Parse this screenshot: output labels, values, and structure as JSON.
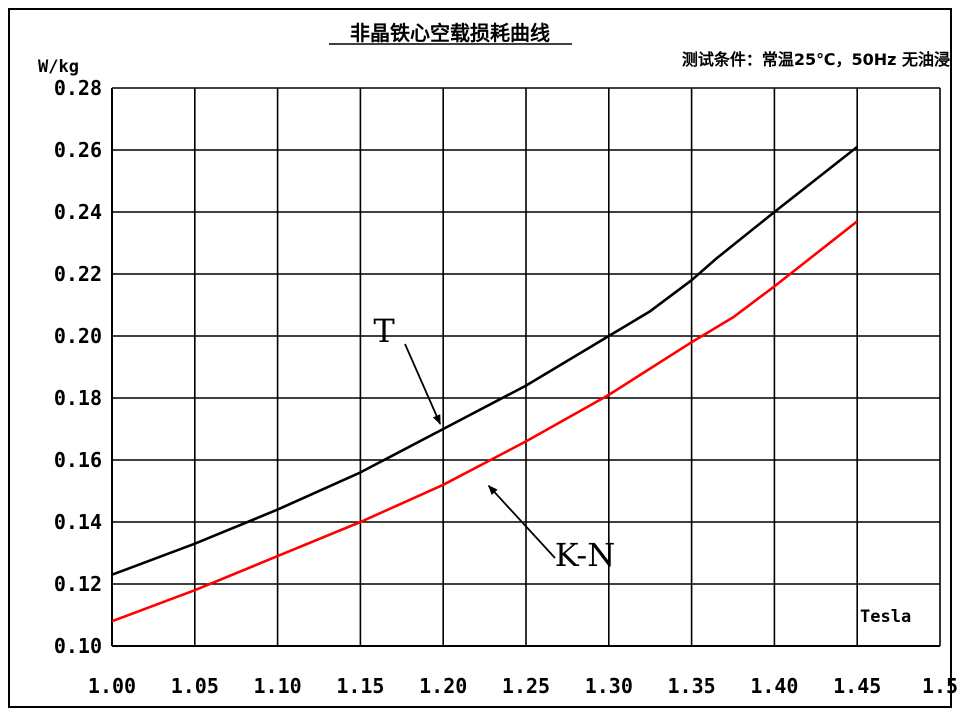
{
  "chart_data": {
    "type": "line",
    "title": "非晶铁心空载损耗曲线",
    "subtitle": "测试条件：常温25℃，50Hz 无油浸",
    "ylabel": "W/kg",
    "xlabel": "Tesla",
    "xlim": [
      1.0,
      1.5
    ],
    "ylim": [
      0.1,
      0.28
    ],
    "x_ticks": [
      "1.00",
      "1.05",
      "1.10",
      "1.15",
      "1.20",
      "1.25",
      "1.30",
      "1.35",
      "1.40",
      "1.45",
      "1.5"
    ],
    "x_tick_values": [
      1.0,
      1.05,
      1.1,
      1.15,
      1.2,
      1.25,
      1.3,
      1.35,
      1.4,
      1.45,
      1.5
    ],
    "y_ticks": [
      "0.10",
      "0.12",
      "0.14",
      "0.16",
      "0.18",
      "0.20",
      "0.22",
      "0.24",
      "0.26",
      "0.28"
    ],
    "y_tick_values": [
      0.1,
      0.12,
      0.14,
      0.16,
      0.18,
      0.2,
      0.22,
      0.24,
      0.26,
      0.28
    ],
    "grid": true,
    "series": [
      {
        "name": "T",
        "color": "#000000",
        "x": [
          1.0,
          1.05,
          1.1,
          1.15,
          1.2,
          1.25,
          1.3,
          1.325,
          1.35,
          1.365,
          1.4,
          1.45
        ],
        "y": [
          0.123,
          0.133,
          0.144,
          0.156,
          0.17,
          0.184,
          0.2,
          0.208,
          0.218,
          0.225,
          0.24,
          0.261
        ]
      },
      {
        "name": "K-N",
        "color": "#ff0000",
        "x": [
          1.0,
          1.05,
          1.1,
          1.15,
          1.175,
          1.2,
          1.25,
          1.3,
          1.35,
          1.375,
          1.4,
          1.45
        ],
        "y": [
          0.108,
          0.118,
          0.129,
          0.14,
          0.146,
          0.152,
          0.166,
          0.181,
          0.198,
          0.206,
          0.216,
          0.237
        ]
      }
    ],
    "annotations": [
      {
        "text": "T",
        "series": "T",
        "x": 1.2,
        "y": 0.17
      },
      {
        "text": "K-N",
        "series": "K-N",
        "x": 1.225,
        "y": 0.153
      }
    ]
  }
}
